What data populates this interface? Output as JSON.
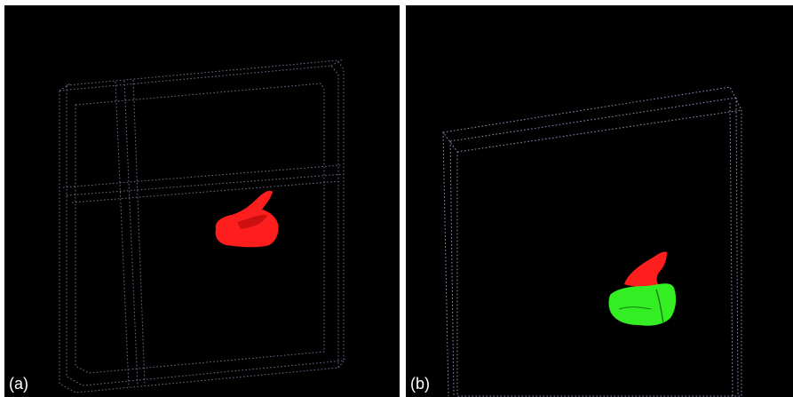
{
  "panels": [
    {
      "id": "a",
      "label": "(a)",
      "frame_color": "#6a6f8a",
      "objects": [
        {
          "name": "red-region",
          "color": "#ff1e1e"
        }
      ]
    },
    {
      "id": "b",
      "label": "(b)",
      "frame_color": "#8e93b8",
      "objects": [
        {
          "name": "red-region",
          "color": "#ff1e1e"
        },
        {
          "name": "green-region",
          "color": "#33ee22"
        }
      ]
    }
  ]
}
